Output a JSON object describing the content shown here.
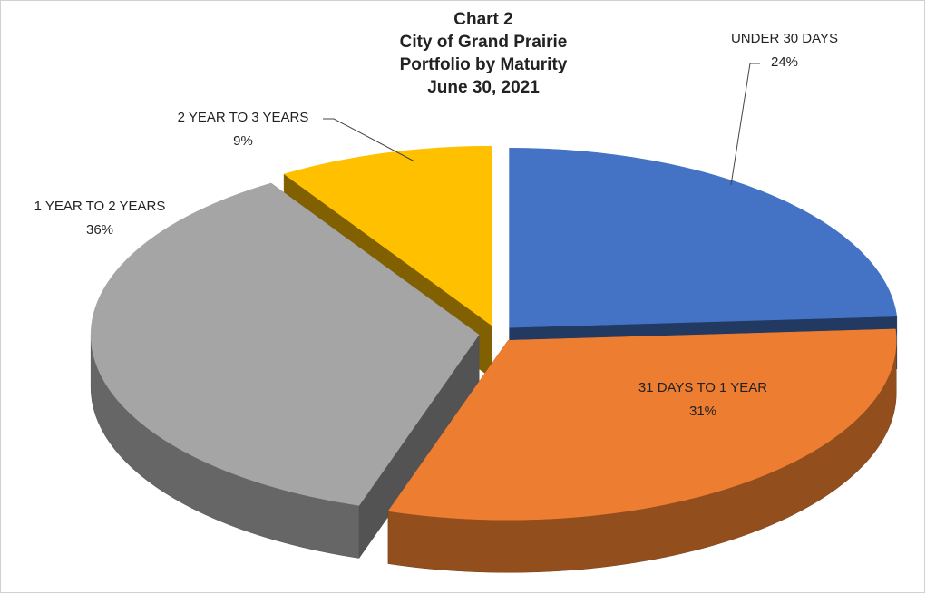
{
  "chart_data": {
    "type": "pie",
    "title": [
      "Chart 2",
      "City of Grand Prairie",
      "Portfolio by Maturity",
      "June 30, 2021"
    ],
    "categories": [
      "UNDER 30 DAYS",
      "31 DAYS TO 1 YEAR",
      "1 YEAR TO 2 YEARS",
      "2 YEAR TO 3 YEARS"
    ],
    "values": [
      24,
      31,
      36,
      9
    ],
    "value_labels": [
      "24%",
      "31%",
      "36%",
      "9%"
    ],
    "colors": [
      "#4472c4",
      "#ed7d31",
      "#a5a5a5",
      "#ffc000"
    ]
  }
}
